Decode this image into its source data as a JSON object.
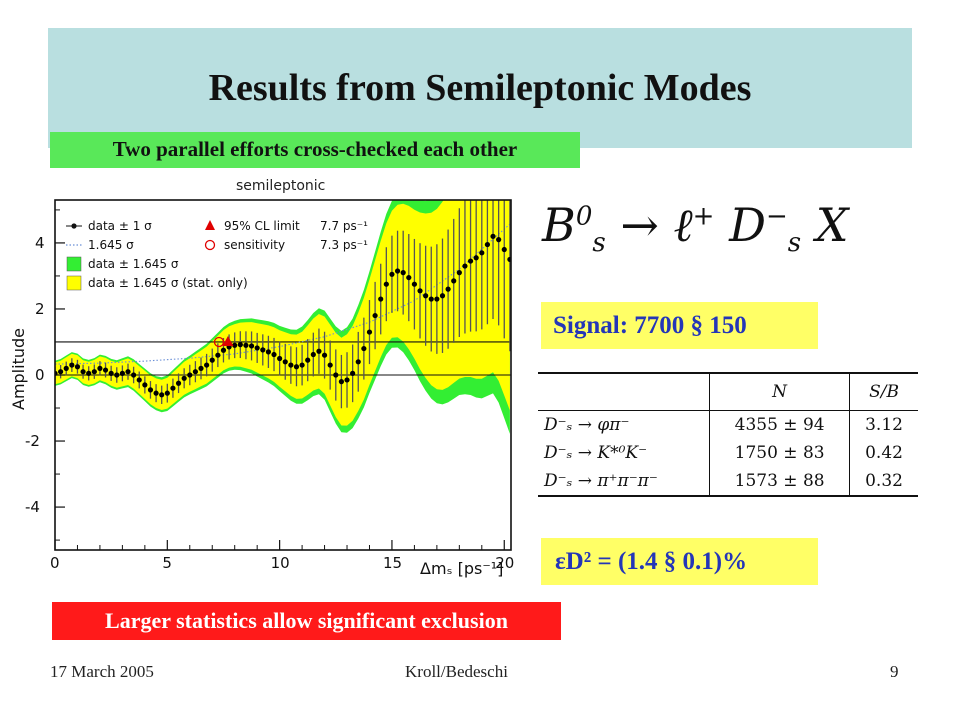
{
  "slide": {
    "title": "Results from Semileptonic Modes",
    "subtitle_box": "Two parallel efforts cross-checked each other",
    "bottom_box": "Larger statistics allow significant exclusion",
    "signal_box": "Signal: 7700 § 150",
    "dilution_box": "εD² = (1.4 § 0.1)%",
    "formula": {
      "lhs": "B",
      "lhs_sup": "0",
      "lhs_sub": "s",
      "arrow": "→",
      "lepton": "ℓ",
      "lepton_sup": "+",
      "meson": "D",
      "meson_sup": "−",
      "meson_sub": "s",
      "rest": "X"
    },
    "footer": {
      "date": "17 March 2005",
      "authors": "Kroll/Bedeschi",
      "page": "9"
    },
    "colors": {
      "title_bg": "#b9dfe0",
      "green": "#59e859",
      "red": "#ff1a1a",
      "yellow": "#ffff66",
      "blue_text": "#2436b8"
    }
  },
  "table": {
    "headers": [
      "",
      "N",
      "S/B"
    ],
    "rows": [
      [
        "D⁻ₛ → φπ⁻",
        "4355 ± 94",
        "3.12"
      ],
      [
        "D⁻ₛ → K*⁰K⁻",
        "1750 ± 83",
        "0.42"
      ],
      [
        "D⁻ₛ → π⁺π⁻π⁻",
        "1573 ± 88",
        "0.32"
      ]
    ]
  },
  "chart_data": {
    "type": "scatter",
    "title": "semileptonic",
    "xlabel": "Δmₛ [ps⁻¹]",
    "ylabel": "Amplitude",
    "xlim": [
      0,
      20.3
    ],
    "ylim": [
      -5.3,
      5.3
    ],
    "xticks": [
      0,
      5,
      10,
      15,
      20
    ],
    "yticks": [
      -4,
      -2,
      0,
      2,
      4
    ],
    "legend": {
      "placement": "top-left",
      "entries": [
        {
          "marker": "dot",
          "label": "data ± 1 σ"
        },
        {
          "marker": "triangle",
          "label": "95% CL limit",
          "value": "7.7 ps⁻¹"
        },
        {
          "marker": "dotted-line",
          "label": "1.645 σ"
        },
        {
          "marker": "open-circle",
          "label": "sensitivity",
          "value": "7.3 ps⁻¹"
        },
        {
          "marker": "green-box",
          "label": "data ± 1.645 σ"
        },
        {
          "marker": "yellow-box",
          "label": "data ± 1.645 σ (stat. only)"
        }
      ]
    },
    "reference_lines": [
      0,
      1
    ],
    "cl_limit": {
      "x": 7.7,
      "y": 1.0
    },
    "sensitivity": {
      "x": 7.3,
      "y": 1.0
    },
    "colors": {
      "green_band": "#33ee33",
      "yellow_band": "#ffff00",
      "points": "#000000",
      "sigma_line": "#6a8fd6",
      "cl_marker": "#e00000"
    },
    "sigma_line": {
      "x": [
        0,
        2,
        4,
        6,
        8,
        10,
        12,
        14,
        16,
        18,
        20.3
      ],
      "y": [
        0.33,
        0.36,
        0.42,
        0.51,
        0.64,
        0.86,
        1.16,
        1.6,
        2.25,
        3.2,
        4.6
      ]
    },
    "x": [
      0.0,
      0.25,
      0.5,
      0.75,
      1.0,
      1.25,
      1.5,
      1.75,
      2.0,
      2.25,
      2.5,
      2.75,
      3.0,
      3.25,
      3.5,
      3.75,
      4.0,
      4.25,
      4.5,
      4.75,
      5.0,
      5.25,
      5.5,
      5.75,
      6.0,
      6.25,
      6.5,
      6.75,
      7.0,
      7.25,
      7.5,
      7.75,
      8.0,
      8.25,
      8.5,
      8.75,
      9.0,
      9.25,
      9.5,
      9.75,
      10.0,
      10.25,
      10.5,
      10.75,
      11.0,
      11.25,
      11.5,
      11.75,
      12.0,
      12.25,
      12.5,
      12.75,
      13.0,
      13.25,
      13.5,
      13.75,
      14.0,
      14.25,
      14.5,
      14.75,
      15.0,
      15.25,
      15.5,
      15.75,
      16.0,
      16.25,
      16.5,
      16.75,
      17.0,
      17.25,
      17.5,
      17.75,
      18.0,
      18.25,
      18.5,
      18.75,
      19.0,
      19.25,
      19.5,
      19.75,
      20.0,
      20.25
    ],
    "y": [
      0.05,
      0.1,
      0.2,
      0.3,
      0.25,
      0.1,
      0.05,
      0.1,
      0.2,
      0.15,
      0.05,
      0.0,
      0.05,
      0.1,
      0.0,
      -0.15,
      -0.3,
      -0.45,
      -0.55,
      -0.6,
      -0.55,
      -0.4,
      -0.25,
      -0.1,
      0.0,
      0.1,
      0.2,
      0.3,
      0.45,
      0.6,
      0.75,
      0.85,
      0.9,
      0.92,
      0.9,
      0.88,
      0.82,
      0.76,
      0.7,
      0.62,
      0.5,
      0.4,
      0.3,
      0.25,
      0.3,
      0.45,
      0.62,
      0.72,
      0.6,
      0.3,
      0.0,
      -0.2,
      -0.15,
      0.05,
      0.4,
      0.8,
      1.3,
      1.8,
      2.3,
      2.75,
      3.05,
      3.15,
      3.1,
      2.95,
      2.75,
      2.55,
      2.4,
      2.3,
      2.3,
      2.4,
      2.6,
      2.85,
      3.1,
      3.3,
      3.45,
      3.55,
      3.7,
      3.95,
      4.2,
      4.1,
      3.8,
      3.5
    ],
    "err_1sigma_x": [
      0,
      2,
      4,
      6,
      8,
      10,
      12,
      14,
      16,
      18,
      20.3
    ],
    "err_1sigma": [
      0.2,
      0.22,
      0.26,
      0.31,
      0.39,
      0.52,
      0.71,
      0.97,
      1.37,
      1.95,
      2.8
    ]
  }
}
